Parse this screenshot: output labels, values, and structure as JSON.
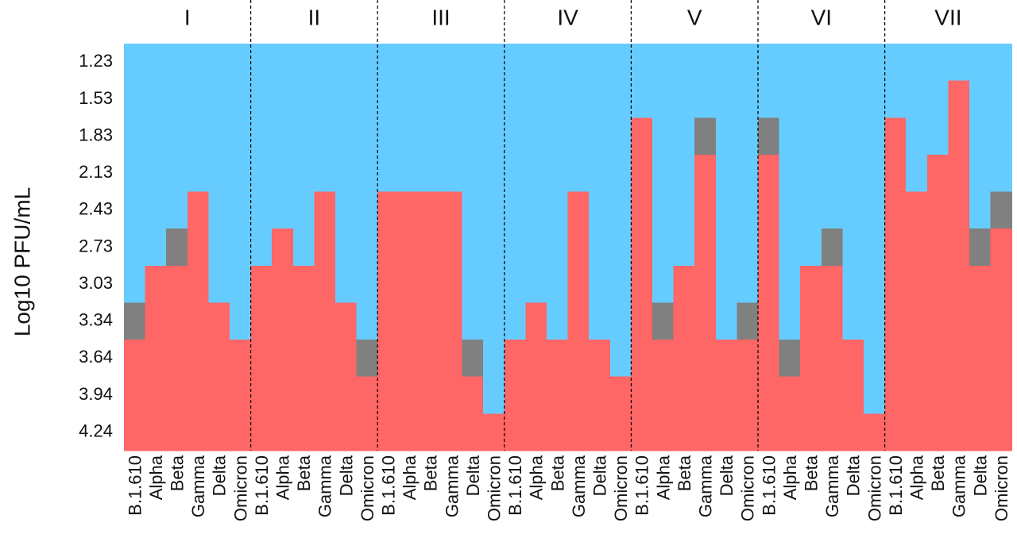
{
  "chart_data": {
    "type": "heatmap",
    "title": "",
    "xlabel": "",
    "ylabel": "Log10 PFU/mL",
    "y_ticks": [
      "1.23",
      "1.53",
      "1.83",
      "2.13",
      "2.43",
      "2.73",
      "3.03",
      "3.34",
      "3.64",
      "3.94",
      "4.24"
    ],
    "variants": [
      "B.1.610",
      "Alpha",
      "Beta",
      "Gamma",
      "Delta",
      "Omicron"
    ],
    "groups": [
      "I",
      "II",
      "III",
      "IV",
      "V",
      "VI",
      "VII"
    ],
    "legend": {
      "blue": "#66ccff",
      "red": "#ff6666",
      "gray": "#808080"
    },
    "note": "Each column is a stack of 11 cells from 1.23 (top) to 4.24 (bottom). red_from_row = first row index (0 = 1.23) that is red down to the bottom; gray_row = row index of the gray cell (null if none).",
    "series": [
      {
        "name": "I",
        "columns": [
          {
            "variant": "B.1.610",
            "red_from_row": 8,
            "gray_row": 7
          },
          {
            "variant": "Alpha",
            "red_from_row": 6,
            "gray_row": null
          },
          {
            "variant": "Beta",
            "red_from_row": 6,
            "gray_row": 5
          },
          {
            "variant": "Gamma",
            "red_from_row": 4,
            "gray_row": null
          },
          {
            "variant": "Delta",
            "red_from_row": 7,
            "gray_row": null
          },
          {
            "variant": "Omicron",
            "red_from_row": 8,
            "gray_row": null
          }
        ]
      },
      {
        "name": "II",
        "columns": [
          {
            "variant": "B.1.610",
            "red_from_row": 6,
            "gray_row": null
          },
          {
            "variant": "Alpha",
            "red_from_row": 5,
            "gray_row": null
          },
          {
            "variant": "Beta",
            "red_from_row": 6,
            "gray_row": null
          },
          {
            "variant": "Gamma",
            "red_from_row": 4,
            "gray_row": null
          },
          {
            "variant": "Delta",
            "red_from_row": 7,
            "gray_row": null
          },
          {
            "variant": "Omicron",
            "red_from_row": 9,
            "gray_row": 8
          }
        ]
      },
      {
        "name": "III",
        "columns": [
          {
            "variant": "B.1.610",
            "red_from_row": 4,
            "gray_row": null
          },
          {
            "variant": "Alpha",
            "red_from_row": 4,
            "gray_row": null
          },
          {
            "variant": "Beta",
            "red_from_row": 4,
            "gray_row": null
          },
          {
            "variant": "Gamma",
            "red_from_row": 4,
            "gray_row": null
          },
          {
            "variant": "Delta",
            "red_from_row": 9,
            "gray_row": 8
          },
          {
            "variant": "Omicron",
            "red_from_row": 10,
            "gray_row": null
          }
        ]
      },
      {
        "name": "IV",
        "columns": [
          {
            "variant": "B.1.610",
            "red_from_row": 8,
            "gray_row": null
          },
          {
            "variant": "Alpha",
            "red_from_row": 7,
            "gray_row": null
          },
          {
            "variant": "Beta",
            "red_from_row": 8,
            "gray_row": null
          },
          {
            "variant": "Gamma",
            "red_from_row": 4,
            "gray_row": null
          },
          {
            "variant": "Delta",
            "red_from_row": 8,
            "gray_row": null
          },
          {
            "variant": "Omicron",
            "red_from_row": 9,
            "gray_row": null
          }
        ]
      },
      {
        "name": "V",
        "columns": [
          {
            "variant": "B.1.610",
            "red_from_row": 2,
            "gray_row": null
          },
          {
            "variant": "Alpha",
            "red_from_row": 8,
            "gray_row": 7
          },
          {
            "variant": "Beta",
            "red_from_row": 6,
            "gray_row": null
          },
          {
            "variant": "Gamma",
            "red_from_row": 3,
            "gray_row": 2
          },
          {
            "variant": "Delta",
            "red_from_row": 8,
            "gray_row": null
          },
          {
            "variant": "Omicron",
            "red_from_row": 8,
            "gray_row": 7
          }
        ]
      },
      {
        "name": "VI",
        "columns": [
          {
            "variant": "B.1.610",
            "red_from_row": 3,
            "gray_row": 2
          },
          {
            "variant": "Alpha",
            "red_from_row": 9,
            "gray_row": 8
          },
          {
            "variant": "Beta",
            "red_from_row": 6,
            "gray_row": null
          },
          {
            "variant": "Gamma",
            "red_from_row": 6,
            "gray_row": 5
          },
          {
            "variant": "Delta",
            "red_from_row": 8,
            "gray_row": null
          },
          {
            "variant": "Omicron",
            "red_from_row": 10,
            "gray_row": null
          }
        ]
      },
      {
        "name": "VII",
        "columns": [
          {
            "variant": "B.1.610",
            "red_from_row": 2,
            "gray_row": null
          },
          {
            "variant": "Alpha",
            "red_from_row": 4,
            "gray_row": null
          },
          {
            "variant": "Beta",
            "red_from_row": 3,
            "gray_row": null
          },
          {
            "variant": "Gamma",
            "red_from_row": 1,
            "gray_row": null
          },
          {
            "variant": "Delta",
            "red_from_row": 6,
            "gray_row": 5
          },
          {
            "variant": "Omicron",
            "red_from_row": 5,
            "gray_row": 4
          }
        ]
      }
    ]
  }
}
